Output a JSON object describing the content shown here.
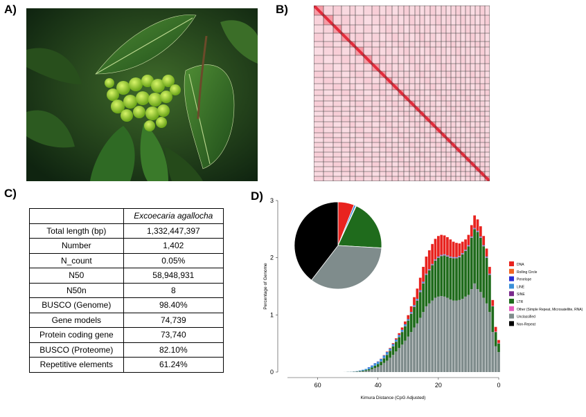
{
  "figure": {
    "panels": {
      "a": "A)",
      "b": "B)",
      "c": "C)",
      "d": "D)"
    }
  },
  "table": {
    "header": [
      "",
      "Excoecaria agallocha"
    ],
    "rows": [
      [
        "Total length (bp)",
        "1,332,447,397"
      ],
      [
        "Number",
        "1,402"
      ],
      [
        "N_count",
        "0.05%"
      ],
      [
        "N50",
        "58,948,931"
      ],
      [
        "N50n",
        "8"
      ],
      [
        "BUSCO (Genome)",
        "98.40%"
      ],
      [
        "Gene models",
        "74,739"
      ],
      [
        "Protein coding gene",
        "73,740"
      ],
      [
        "BUSCO (Proteome)",
        "82.10%"
      ],
      [
        "Repetitive elements",
        "61.24%"
      ]
    ]
  },
  "chart_data": {
    "type": "bar",
    "stacked": true,
    "xlabel": "Kimura Distance (CpG Adjusted)",
    "ylabel": "Percentage of Genome",
    "xlim": [
      70,
      0
    ],
    "ylim": [
      0,
      3
    ],
    "xticks": [
      "60",
      "40",
      "20",
      "0"
    ],
    "yticks": [
      "0",
      "1",
      "2",
      "3"
    ],
    "legend_position": "right",
    "legend": [
      {
        "name": "DNA",
        "color": "#e8231f"
      },
      {
        "name": "Rolling Circle",
        "color": "#f26522"
      },
      {
        "name": "Penelope",
        "color": "#2b2fd4"
      },
      {
        "name": "LINE",
        "color": "#3a8fd8"
      },
      {
        "name": "SINE",
        "color": "#7a2a8c"
      },
      {
        "name": "LTR",
        "color": "#1f6b1c"
      },
      {
        "name": "Other (Simple Repeat, Microsatellite, RNA)",
        "color": "#e65fbf"
      },
      {
        "name": "Unclassified",
        "color": "#7f8c8c"
      },
      {
        "name": "Non-Repeat",
        "color": "#000000"
      }
    ],
    "divergence_bins": [
      0,
      1,
      2,
      3,
      4,
      5,
      6,
      7,
      8,
      9,
      10,
      11,
      12,
      13,
      14,
      15,
      16,
      17,
      18,
      19,
      20,
      21,
      22,
      23,
      24,
      25,
      26,
      27,
      28,
      29,
      30,
      31,
      32,
      33,
      34,
      35,
      36,
      37,
      38,
      39,
      40,
      41,
      42,
      43,
      44,
      45,
      46,
      47,
      48,
      49,
      50,
      51,
      52,
      53,
      54,
      55,
      56,
      57,
      58,
      59,
      60,
      61,
      62,
      63,
      64,
      65,
      66,
      67,
      68,
      69,
      70
    ],
    "series": [
      {
        "name": "Unclassified",
        "values": [
          0.35,
          0.45,
          0.7,
          1.05,
          1.2,
          1.3,
          1.4,
          1.45,
          1.55,
          1.45,
          1.35,
          1.32,
          1.28,
          1.26,
          1.25,
          1.25,
          1.27,
          1.3,
          1.32,
          1.33,
          1.32,
          1.3,
          1.25,
          1.2,
          1.15,
          1.05,
          0.95,
          0.85,
          0.78,
          0.7,
          0.62,
          0.55,
          0.48,
          0.42,
          0.36,
          0.3,
          0.25,
          0.2,
          0.16,
          0.12,
          0.09,
          0.07,
          0.05,
          0.03,
          0.02,
          0.015,
          0.01,
          0.007,
          0.005,
          0.003,
          0.002,
          0.001,
          0,
          0,
          0,
          0,
          0,
          0,
          0,
          0,
          0,
          0,
          0,
          0,
          0,
          0,
          0,
          0,
          0,
          0,
          0
        ]
      },
      {
        "name": "LTR",
        "values": [
          0.15,
          0.25,
          0.45,
          0.65,
          0.8,
          0.9,
          0.95,
          1.0,
          0.95,
          0.9,
          0.85,
          0.8,
          0.78,
          0.75,
          0.74,
          0.74,
          0.73,
          0.72,
          0.72,
          0.7,
          0.68,
          0.65,
          0.62,
          0.58,
          0.55,
          0.5,
          0.45,
          0.4,
          0.36,
          0.32,
          0.28,
          0.25,
          0.22,
          0.19,
          0.17,
          0.15,
          0.12,
          0.1,
          0.08,
          0.06,
          0.05,
          0.04,
          0.03,
          0.02,
          0.015,
          0.01,
          0.007,
          0.004,
          0.002,
          0.001,
          0.001,
          0,
          0,
          0,
          0,
          0,
          0,
          0,
          0,
          0,
          0,
          0,
          0,
          0,
          0,
          0,
          0,
          0,
          0,
          0,
          0
        ]
      },
      {
        "name": "Other (Simple Repeat, Microsatellite, RNA)",
        "values": [
          0.01,
          0.01,
          0.01,
          0.01,
          0.01,
          0.01,
          0.01,
          0.01,
          0.01,
          0.01,
          0.01,
          0.01,
          0.01,
          0.01,
          0.01,
          0.01,
          0.01,
          0.01,
          0.01,
          0.01,
          0.01,
          0.01,
          0.01,
          0.01,
          0.01,
          0.01,
          0.01,
          0.01,
          0.01,
          0.01,
          0.005,
          0.005,
          0.005,
          0.005,
          0.005,
          0.005,
          0.005,
          0.005,
          0.005,
          0.005,
          0,
          0,
          0,
          0,
          0,
          0,
          0,
          0,
          0,
          0,
          0,
          0,
          0,
          0,
          0,
          0,
          0,
          0,
          0,
          0,
          0,
          0,
          0,
          0,
          0,
          0,
          0,
          0,
          0,
          0,
          0
        ]
      },
      {
        "name": "LINE",
        "values": [
          0,
          0,
          0,
          0.01,
          0.01,
          0.01,
          0.01,
          0.01,
          0.01,
          0.01,
          0.01,
          0.01,
          0.01,
          0.01,
          0.01,
          0.01,
          0.01,
          0.01,
          0.01,
          0.01,
          0.01,
          0.01,
          0.01,
          0.01,
          0.01,
          0.02,
          0.02,
          0.02,
          0.02,
          0.02,
          0.02,
          0.03,
          0.03,
          0.03,
          0.03,
          0.03,
          0.03,
          0.04,
          0.04,
          0.04,
          0.04,
          0.04,
          0.03,
          0.03,
          0.02,
          0.015,
          0.01,
          0.005,
          0.003,
          0.002,
          0.001,
          0,
          0,
          0,
          0,
          0,
          0,
          0,
          0,
          0,
          0,
          0,
          0,
          0,
          0,
          0,
          0,
          0,
          0,
          0,
          0
        ]
      },
      {
        "name": "Penelope",
        "values": [
          0,
          0,
          0,
          0,
          0,
          0,
          0,
          0,
          0,
          0,
          0,
          0,
          0,
          0,
          0,
          0,
          0,
          0,
          0,
          0,
          0,
          0,
          0,
          0,
          0,
          0,
          0,
          0,
          0,
          0,
          0,
          0,
          0.005,
          0.005,
          0.005,
          0.005,
          0.005,
          0.005,
          0.005,
          0.005,
          0.005,
          0.005,
          0.005,
          0.005,
          0,
          0,
          0,
          0,
          0,
          0,
          0,
          0,
          0,
          0,
          0,
          0,
          0,
          0,
          0,
          0,
          0,
          0,
          0,
          0,
          0,
          0,
          0,
          0,
          0,
          0,
          0
        ]
      },
      {
        "name": "DNA",
        "values": [
          0.05,
          0.08,
          0.1,
          0.12,
          0.14,
          0.16,
          0.18,
          0.2,
          0.22,
          0.2,
          0.18,
          0.18,
          0.2,
          0.22,
          0.25,
          0.27,
          0.3,
          0.32,
          0.33,
          0.35,
          0.36,
          0.36,
          0.35,
          0.33,
          0.3,
          0.26,
          0.22,
          0.18,
          0.14,
          0.1,
          0.07,
          0.05,
          0.04,
          0.03,
          0.02,
          0.015,
          0.01,
          0.008,
          0.005,
          0.003,
          0.002,
          0.001,
          0,
          0,
          0,
          0,
          0,
          0,
          0,
          0,
          0,
          0,
          0,
          0,
          0,
          0,
          0,
          0,
          0,
          0,
          0,
          0,
          0,
          0,
          0,
          0,
          0,
          0,
          0,
          0,
          0
        ]
      }
    ],
    "pie": {
      "title": "",
      "slices": [
        {
          "name": "DNA",
          "value": 6.0
        },
        {
          "name": "LINE",
          "value": 0.7
        },
        {
          "name": "Penelope",
          "value": 0.2
        },
        {
          "name": "LTR",
          "value": 19.0
        },
        {
          "name": "Unclassified",
          "value": 34.5
        },
        {
          "name": "Non-Repeat",
          "value": 39.6
        }
      ]
    }
  }
}
